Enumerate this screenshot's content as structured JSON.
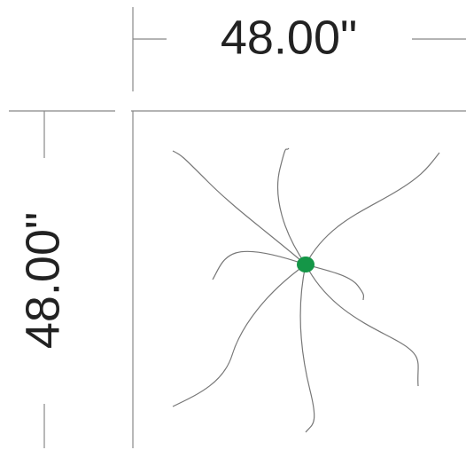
{
  "dimensions": {
    "width": "48.00\"",
    "height": "48.00\""
  }
}
